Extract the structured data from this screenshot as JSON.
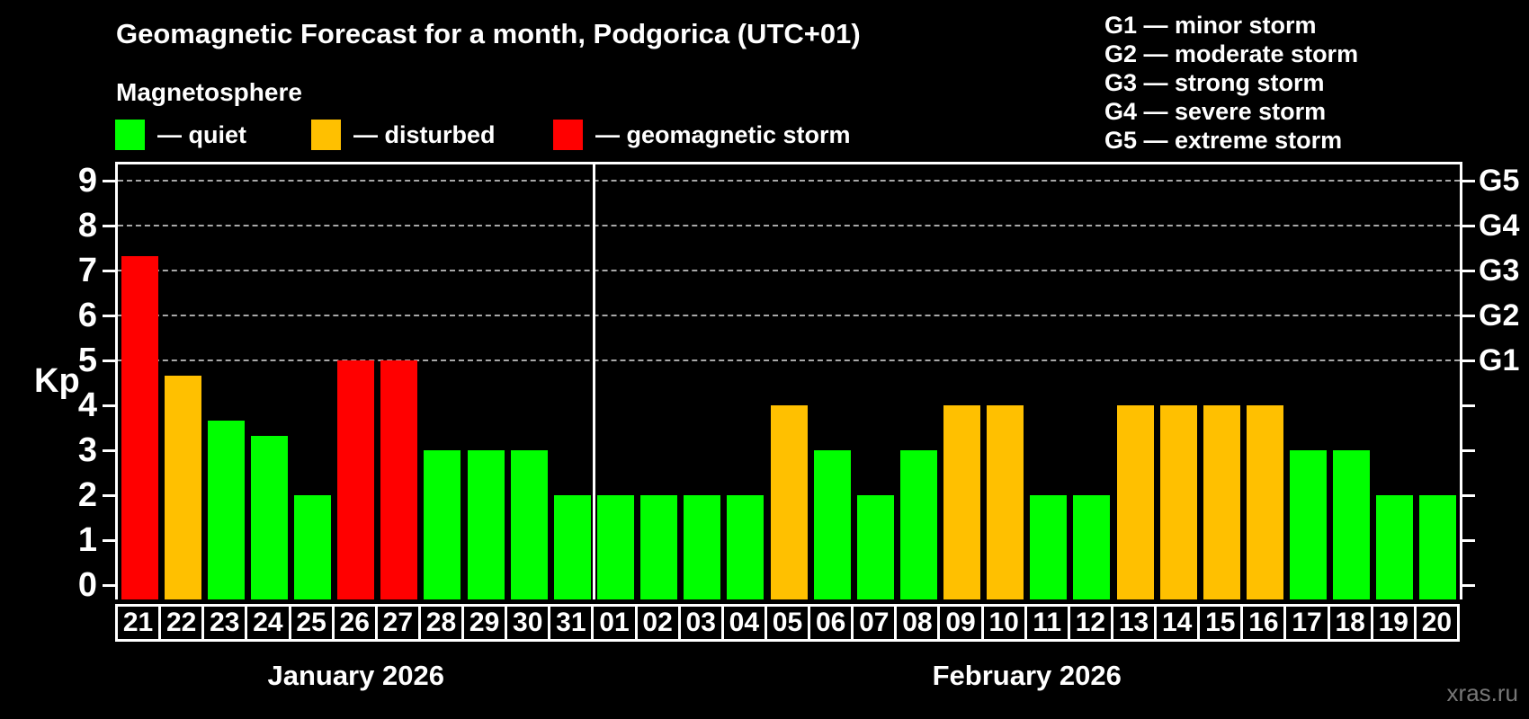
{
  "title": "Geomagnetic Forecast for a month, Podgorica (UTC+01)",
  "subtitle": "Magnetosphere",
  "legend": {
    "items": [
      {
        "key": "quiet",
        "label": "— quiet",
        "color": "#00ff00"
      },
      {
        "key": "disturbed",
        "label": "— disturbed",
        "color": "#ffc000"
      },
      {
        "key": "storm",
        "label": "— geomagnetic storm",
        "color": "#ff0000"
      }
    ]
  },
  "storm_scale_legend": [
    "G1 — minor storm",
    "G2 — moderate storm",
    "G3 — strong storm",
    "G4 — severe storm",
    "G5 — extreme storm"
  ],
  "watermark": "xras.ru",
  "colors": {
    "quiet": "#00ff00",
    "disturbed": "#ffc000",
    "storm": "#ff0000",
    "background": "#000000",
    "text": "#ffffff",
    "gridline": "#a8a8a8",
    "watermark_text": "#777777"
  },
  "chart_data": {
    "type": "bar",
    "ylabel": "Kp",
    "ylim": [
      0,
      9
    ],
    "yticks": [
      0,
      1,
      2,
      3,
      4,
      5,
      6,
      7,
      8,
      9
    ],
    "gridlines_at": [
      5,
      6,
      7,
      8,
      9
    ],
    "grid": "dashed, only at storm levels Kp 5-9",
    "legend_position": "top-left (colors) and top-right (G scale)",
    "right_axis_labels": [
      {
        "kp": 5,
        "label": "G1"
      },
      {
        "kp": 6,
        "label": "G2"
      },
      {
        "kp": 7,
        "label": "G3"
      },
      {
        "kp": 8,
        "label": "G4"
      },
      {
        "kp": 9,
        "label": "G5"
      }
    ],
    "months": [
      {
        "label": "January 2026",
        "days": 11
      },
      {
        "label": "February 2026",
        "days": 20
      }
    ],
    "days": [
      {
        "day": "21",
        "kp": 7.33,
        "status": "storm"
      },
      {
        "day": "22",
        "kp": 4.67,
        "status": "disturbed"
      },
      {
        "day": "23",
        "kp": 3.67,
        "status": "quiet"
      },
      {
        "day": "24",
        "kp": 3.33,
        "status": "quiet"
      },
      {
        "day": "25",
        "kp": 2,
        "status": "quiet"
      },
      {
        "day": "26",
        "kp": 5,
        "status": "storm"
      },
      {
        "day": "27",
        "kp": 5,
        "status": "storm"
      },
      {
        "day": "28",
        "kp": 3,
        "status": "quiet"
      },
      {
        "day": "29",
        "kp": 3,
        "status": "quiet"
      },
      {
        "day": "30",
        "kp": 3,
        "status": "quiet"
      },
      {
        "day": "31",
        "kp": 2,
        "status": "quiet"
      },
      {
        "day": "01",
        "kp": 2,
        "status": "quiet"
      },
      {
        "day": "02",
        "kp": 2,
        "status": "quiet"
      },
      {
        "day": "03",
        "kp": 2,
        "status": "quiet"
      },
      {
        "day": "04",
        "kp": 2,
        "status": "quiet"
      },
      {
        "day": "05",
        "kp": 4,
        "status": "disturbed"
      },
      {
        "day": "06",
        "kp": 3,
        "status": "quiet"
      },
      {
        "day": "07",
        "kp": 2,
        "status": "quiet"
      },
      {
        "day": "08",
        "kp": 3,
        "status": "quiet"
      },
      {
        "day": "09",
        "kp": 4,
        "status": "disturbed"
      },
      {
        "day": "10",
        "kp": 4,
        "status": "disturbed"
      },
      {
        "day": "11",
        "kp": 2,
        "status": "quiet"
      },
      {
        "day": "12",
        "kp": 2,
        "status": "quiet"
      },
      {
        "day": "13",
        "kp": 4,
        "status": "disturbed"
      },
      {
        "day": "14",
        "kp": 4,
        "status": "disturbed"
      },
      {
        "day": "15",
        "kp": 4,
        "status": "disturbed"
      },
      {
        "day": "16",
        "kp": 4,
        "status": "disturbed"
      },
      {
        "day": "17",
        "kp": 3,
        "status": "quiet"
      },
      {
        "day": "18",
        "kp": 3,
        "status": "quiet"
      },
      {
        "day": "19",
        "kp": 2,
        "status": "quiet"
      },
      {
        "day": "20",
        "kp": 2,
        "status": "quiet"
      }
    ]
  }
}
